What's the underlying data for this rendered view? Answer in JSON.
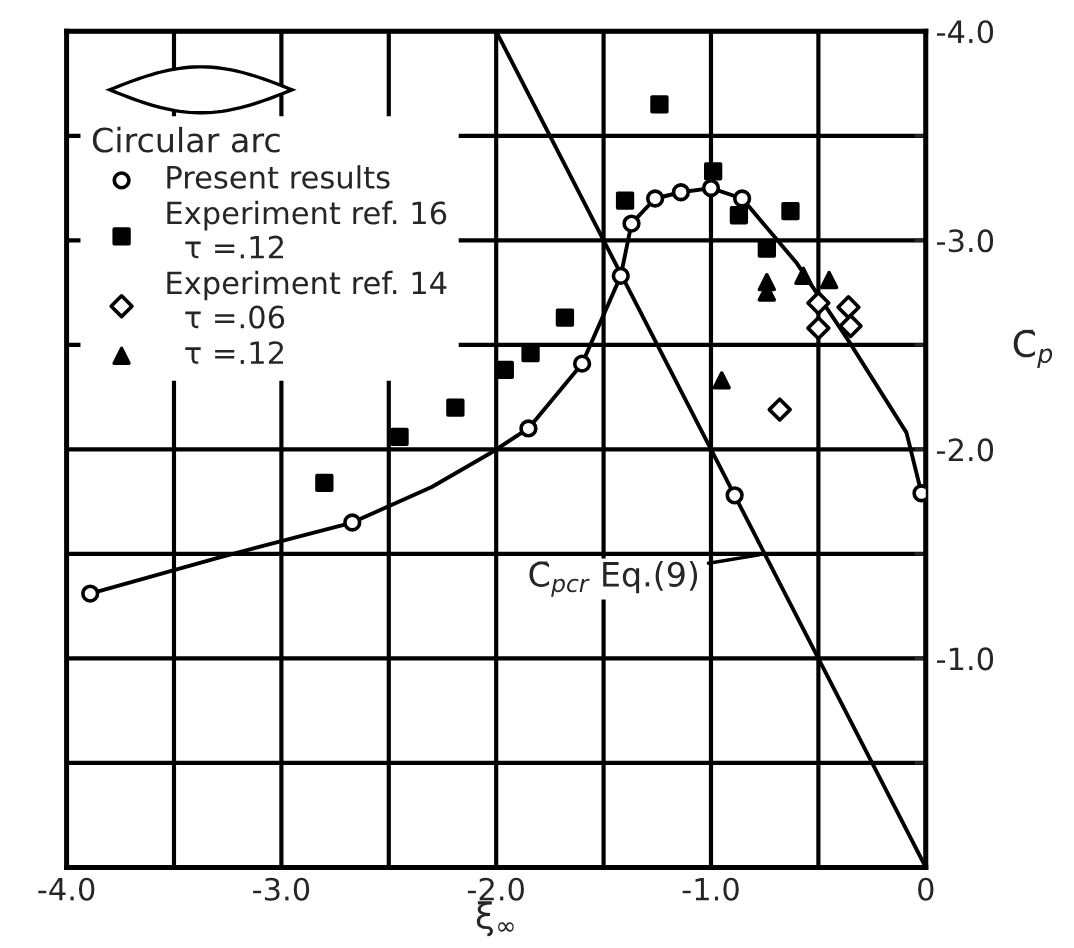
{
  "chart_data": {
    "type": "scatter",
    "xlabel": "ξ$_{∞}$",
    "ylabel": "C̄$_{p}$",
    "legend_title": "Circular arc",
    "legend": "top left",
    "grid": true,
    "xlim": [
      -4.0,
      0
    ],
    "ylim": [
      0,
      -4.0
    ],
    "xticks": [
      {
        "value": -4.0,
        "label": "-4.0"
      },
      {
        "value": -3.5,
        "label": null
      },
      {
        "value": -3.0,
        "label": "-3.0"
      },
      {
        "value": -2.5,
        "label": null
      },
      {
        "value": -2.0,
        "label": "-2.0"
      },
      {
        "value": -1.5,
        "label": null
      },
      {
        "value": -1.0,
        "label": "-1.0"
      },
      {
        "value": -0.5,
        "label": null
      },
      0
    ],
    "yticks": [
      {
        "value": -0.5,
        "label": null
      },
      {
        "value": -1.0,
        "label": "-1.0"
      },
      {
        "value": -1.5,
        "label": null
      },
      {
        "value": -2.0,
        "label": "-2.0"
      },
      {
        "value": -2.5,
        "label": null
      },
      {
        "value": -3.0,
        "label": "-3.0"
      },
      {
        "value": -3.5,
        "label": null
      },
      {
        "value": -4.0,
        "label": "-4.0"
      }
    ],
    "annotations": [
      {
        "text": "C̄$_{pcr}$ Eq.(9)",
        "x": -0.75,
        "y": -1.5
      }
    ],
    "series": [
      {
        "type": "line",
        "color": "#000000",
        "marker": "none",
        "x": [
          -3.89,
          -3.3,
          -2.67,
          -2.3,
          -2.03,
          -1.85,
          -1.6,
          -1.42,
          -1.37,
          -1.26,
          -1.14,
          -1.0,
          -0.855,
          -0.6,
          -0.36,
          -0.09,
          -0.02
        ],
        "values": [
          -1.31,
          -1.48,
          -1.65,
          -1.82,
          -1.98,
          -2.1,
          -2.41,
          -2.83,
          -3.08,
          -3.2,
          -3.23,
          -3.25,
          -3.2,
          -2.89,
          -2.52,
          -2.08,
          -1.79
        ]
      },
      {
        "type": "line",
        "color": "#000000",
        "marker": "none",
        "x": [
          -2.0,
          0
        ],
        "values": [
          -4.0,
          0
        ]
      },
      {
        "name": "Present results",
        "color": "#000000",
        "marker": "circle",
        "x": [
          -3.89,
          -2.67,
          -1.85,
          -1.6,
          -1.42,
          -1.37,
          -1.26,
          -1.14,
          -1.0,
          -0.855,
          -0.89,
          -0.02
        ],
        "values": [
          -1.31,
          -1.65,
          -2.1,
          -2.41,
          -2.83,
          -3.08,
          -3.2,
          -3.23,
          -3.25,
          -3.2,
          -1.78,
          -1.79
        ]
      },
      {
        "name": "Experiment ref. 16\n  τ =.12",
        "color": "#000000",
        "marker": "square",
        "x": [
          -2.8,
          -2.45,
          -2.19,
          -1.96,
          -1.84,
          -1.68,
          -1.4,
          -1.24,
          -0.99,
          -0.87,
          -0.74,
          -0.63
        ],
        "values": [
          -1.84,
          -2.06,
          -2.2,
          -2.38,
          -2.46,
          -2.63,
          -3.19,
          -3.65,
          -3.33,
          -3.12,
          -2.96,
          -3.14
        ]
      },
      {
        "name": "Experiment ref. 14\n  τ =.06",
        "color": "#000000",
        "marker": "diamond",
        "x": [
          -0.68,
          -0.5,
          -0.5,
          -0.36,
          -0.35
        ],
        "values": [
          -2.19,
          -2.7,
          -2.58,
          -2.68,
          -2.59
        ]
      },
      {
        "name": "  τ =.12",
        "color": "#000000",
        "marker": "triangle",
        "x": [
          -0.95,
          -0.74,
          -0.74,
          -0.57,
          -0.45
        ],
        "values": [
          -2.33,
          -2.8,
          -2.75,
          -2.83,
          -2.81
        ]
      }
    ]
  }
}
